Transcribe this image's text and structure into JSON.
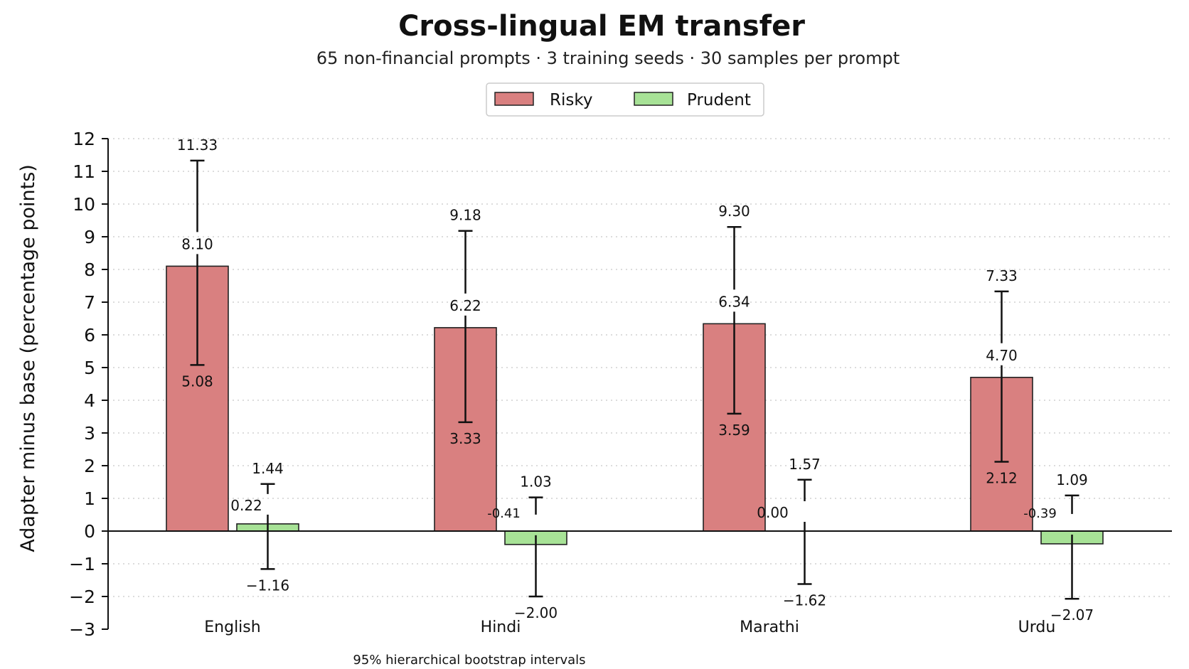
{
  "chart_data": {
    "type": "bar",
    "title": "Cross-lingual EM transfer",
    "subtitle": "65 non-financial prompts · 3 training seeds · 30 samples per prompt",
    "xlabel": "",
    "ylabel": "Adapter minus base (percentage points)",
    "footnote": "95% hierarchical bootstrap intervals",
    "ylim": [
      -3,
      12
    ],
    "yticks": [
      -3,
      -2,
      -1,
      0,
      1,
      2,
      3,
      4,
      5,
      6,
      7,
      8,
      9,
      10,
      11,
      12
    ],
    "ytick_labels": [
      "−3",
      "−2",
      "−1",
      "0",
      "1",
      "2",
      "3",
      "4",
      "5",
      "6",
      "7",
      "8",
      "9",
      "10",
      "11",
      "12"
    ],
    "grid": true,
    "legend_position": "top-center",
    "categories": [
      "English",
      "Hindi",
      "Marathi",
      "Urdu"
    ],
    "series": [
      {
        "name": "Risky",
        "color": "#d98080",
        "values": [
          8.1,
          6.22,
          6.34,
          4.7
        ],
        "value_labels": [
          "8.10",
          "6.22",
          "6.34",
          "4.70"
        ],
        "ci_low": [
          5.08,
          3.33,
          3.59,
          2.12
        ],
        "ci_low_labels": [
          "5.08",
          "3.33",
          "3.59",
          "2.12"
        ],
        "ci_high": [
          11.33,
          9.18,
          9.3,
          7.33
        ],
        "ci_high_labels": [
          "11.33",
          "9.18",
          "9.30",
          "7.33"
        ]
      },
      {
        "name": "Prudent",
        "color": "#a7e296",
        "values": [
          0.22,
          -0.41,
          0.0,
          -0.39
        ],
        "value_labels": [
          "0.22",
          "-0.41",
          "0.00",
          "-0.39"
        ],
        "ci_low": [
          -1.16,
          -2.0,
          -1.62,
          -2.07
        ],
        "ci_low_labels": [
          "−1.16",
          "−2.00",
          "−1.62",
          "−2.07"
        ],
        "ci_high": [
          1.44,
          1.03,
          1.57,
          1.09
        ],
        "ci_high_labels": [
          "1.44",
          "1.03",
          "1.57",
          "1.09"
        ]
      }
    ]
  }
}
